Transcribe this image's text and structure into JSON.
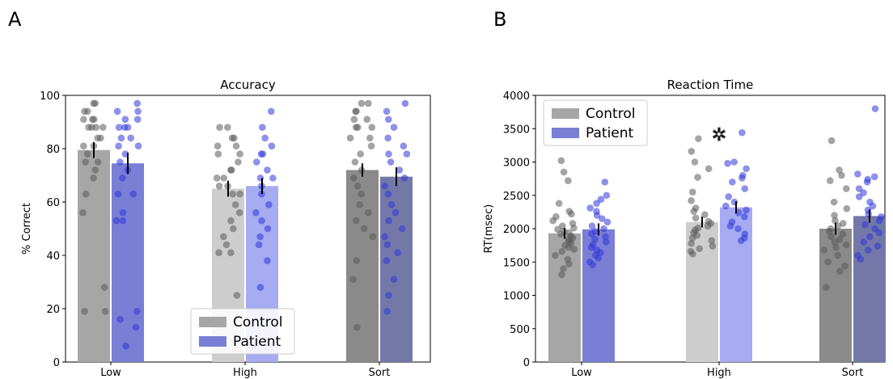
{
  "panels": [
    {
      "letter": "A"
    },
    {
      "letter": "B"
    }
  ],
  "colors": {
    "control": [
      "#a6a6a6",
      "#cdcdcd",
      "#8a8a8a"
    ],
    "patient": [
      "#7a7fd6",
      "#a6abf2",
      "#7478a8"
    ],
    "control_dots": "#5a5a5a",
    "patient_dots": "#2f37d8",
    "error_bar": "#000000"
  },
  "chart_data": [
    {
      "type": "bar",
      "title": "Accuracy",
      "xlabel": "",
      "ylabel": "% Correct",
      "ylim": [
        0,
        100
      ],
      "yticks": [
        0,
        20,
        40,
        60,
        80,
        100
      ],
      "categories": [
        "Low",
        "High",
        "Sort"
      ],
      "series": [
        {
          "name": "Control",
          "values": [
            79.5,
            65,
            72
          ],
          "errors": [
            3,
            3,
            2.5
          ]
        },
        {
          "name": "Patient",
          "values": [
            74.5,
            66,
            69.5
          ],
          "errors": [
            4,
            3,
            3.5
          ]
        }
      ],
      "points": {
        "Control": [
          [
            97,
            97,
            94,
            94,
            91,
            91,
            91,
            88,
            88,
            88,
            88,
            84,
            84,
            81,
            81,
            78,
            75,
            75,
            72,
            69,
            63,
            56,
            28,
            19,
            19
          ],
          [
            88,
            88,
            84,
            84,
            81,
            81,
            78,
            78,
            75,
            72,
            72,
            69,
            69,
            66,
            66,
            63,
            63,
            59,
            56,
            53,
            50,
            47,
            44,
            41,
            41,
            25
          ],
          [
            97,
            97,
            94,
            94,
            91,
            91,
            88,
            88,
            88,
            84,
            84,
            81,
            78,
            75,
            72,
            69,
            66,
            63,
            59,
            56,
            53,
            50,
            47,
            38,
            31,
            13
          ]
        ],
        "Patient": [
          [
            97,
            94,
            94,
            91,
            91,
            88,
            88,
            88,
            84,
            84,
            81,
            81,
            78,
            75,
            72,
            69,
            63,
            63,
            56,
            53,
            53,
            19,
            16,
            13,
            6
          ],
          [
            94,
            88,
            84,
            81,
            78,
            78,
            75,
            72,
            69,
            69,
            66,
            63,
            59,
            56,
            53,
            50,
            47,
            44,
            38,
            28
          ],
          [
            97,
            94,
            91,
            88,
            84,
            81,
            78,
            78,
            75,
            72,
            69,
            66,
            63,
            59,
            56,
            53,
            50,
            47,
            44,
            41,
            38,
            31,
            25,
            19
          ]
        ]
      },
      "legend": {
        "position": "bottom-center",
        "labels": [
          "Control",
          "Patient"
        ]
      }
    },
    {
      "type": "bar",
      "title": "Reaction Time",
      "xlabel": "",
      "ylabel": "RT(msec)",
      "ylim": [
        0,
        4000
      ],
      "yticks": [
        0,
        500,
        1000,
        1500,
        2000,
        2500,
        3000,
        3500,
        4000
      ],
      "categories": [
        "Low",
        "High",
        "Sort"
      ],
      "series": [
        {
          "name": "Control",
          "values": [
            1930,
            2100,
            2000
          ],
          "errors": [
            80,
            80,
            90
          ]
        },
        {
          "name": "Patient",
          "values": [
            1990,
            2320,
            2190
          ],
          "errors": [
            90,
            90,
            100
          ]
        }
      ],
      "points": {
        "Control": [
          [
            3020,
            2850,
            2720,
            2380,
            2260,
            2220,
            2180,
            2120,
            2080,
            2040,
            2010,
            1990,
            1960,
            1940,
            1920,
            1890,
            1860,
            1840,
            1810,
            1780,
            1750,
            1720,
            1690,
            1660,
            1600,
            1540,
            1470,
            1400,
            1310
          ],
          [
            3350,
            3160,
            3000,
            2900,
            2770,
            2550,
            2420,
            2310,
            2260,
            2210,
            2160,
            2110,
            2080,
            2040,
            2010,
            1980,
            1940,
            1900,
            1860,
            1820,
            1780,
            1740,
            1700,
            1660,
            1620
          ],
          [
            3320,
            2880,
            2800,
            2720,
            2600,
            2400,
            2300,
            2200,
            2120,
            2080,
            2040,
            2000,
            1960,
            1920,
            1880,
            1840,
            1800,
            1760,
            1720,
            1680,
            1600,
            1500,
            1440,
            1360,
            1120
          ]
        ],
        "Patient": [
          [
            2700,
            2500,
            2440,
            2380,
            2310,
            2260,
            2200,
            2150,
            2100,
            2040,
            2000,
            1960,
            1920,
            1880,
            1840,
            1800,
            1760,
            1720,
            1680,
            1640,
            1600,
            1560,
            1500,
            1460
          ],
          [
            3440,
            3000,
            2980,
            2900,
            2800,
            2760,
            2700,
            2600,
            2480,
            2400,
            2340,
            2280,
            2240,
            2180,
            2100,
            2040,
            2000,
            1920,
            1860,
            1820
          ],
          [
            3800,
            2820,
            2780,
            2740,
            2700,
            2600,
            2540,
            2480,
            2400,
            2340,
            2280,
            2220,
            2180,
            2120,
            2060,
            2000,
            1940,
            1880,
            1800,
            1740,
            1680,
            1600,
            1540
          ]
        ]
      },
      "significance_marker": {
        "category": "High",
        "glyph": "✲"
      },
      "legend": {
        "position": "top-left",
        "labels": [
          "Control",
          "Patient"
        ]
      }
    }
  ]
}
